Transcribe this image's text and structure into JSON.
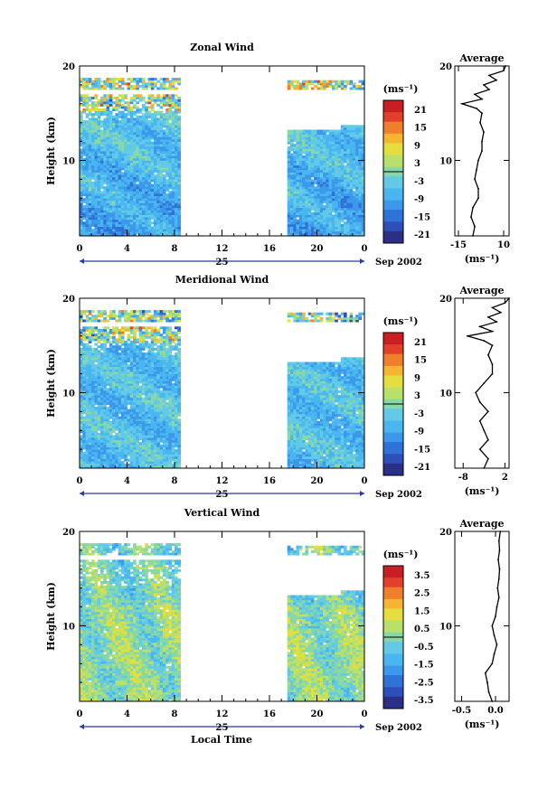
{
  "x_axis_title": "Local Time",
  "colorbar_unit": "(ms⁻¹)",
  "average_title": "Average",
  "average_xlabel": "(ms⁻¹)",
  "height_label": "Height (km)",
  "date_day": "25",
  "date_label": "Sep 2002",
  "colors": {
    "scale": [
      "#2b2f86",
      "#2e4fb8",
      "#2f72d8",
      "#3c98ea",
      "#49b6f0",
      "#62c9e6",
      "#86d8a8",
      "#b9e06a",
      "#e3df3e",
      "#f6b432",
      "#f07f2c",
      "#e2402a",
      "#c81f24"
    ],
    "gap": "#ffffff"
  },
  "chart_data": [
    {
      "type": "heatmap",
      "title": "Zonal Wind",
      "ylabel": "Height (km)",
      "xlabel": "Local Time",
      "x_ticks": [
        "0",
        "4",
        "8",
        "12",
        "16",
        "20",
        "0"
      ],
      "y_ticks": [
        "10",
        "20"
      ],
      "xlim": [
        0,
        24
      ],
      "ylim": [
        2,
        20
      ],
      "data_intervals_hours": [
        [
          0,
          8.5
        ],
        [
          17.5,
          24
        ]
      ],
      "vmin": -24,
      "vmax": 24,
      "colorbar_ticks": [
        "21",
        "15",
        "9",
        "3",
        "-3",
        "-9",
        "-15",
        "-21"
      ],
      "colorbar_values": [
        21,
        15,
        9,
        3,
        -3,
        -9,
        -15,
        -21
      ],
      "average_profile": {
        "title": "Average",
        "xlabel": "(ms⁻¹)",
        "x_ticks": [
          "-15",
          "10"
        ],
        "x_tick_values": [
          -15,
          10
        ],
        "xlim": [
          -17,
          13
        ],
        "y_ticks": [
          "10",
          "20"
        ],
        "height_km": [
          2,
          3,
          4,
          5,
          6,
          7,
          8,
          9,
          10,
          11,
          12,
          13,
          14,
          15,
          15.5,
          16,
          16.5,
          17,
          17.5,
          18,
          18.5,
          19,
          19.5,
          20
        ],
        "wind_ms": [
          -7,
          -6,
          -8,
          -7,
          -4,
          -4,
          -6,
          -5,
          -4,
          -2,
          -2,
          -1,
          -3,
          -2,
          -5,
          -13,
          -2,
          -6,
          2,
          -1,
          6,
          2,
          10,
          11
        ]
      }
    },
    {
      "type": "heatmap",
      "title": "Meridional Wind",
      "ylabel": "Height (km)",
      "xlabel": "Local Time",
      "x_ticks": [
        "0",
        "4",
        "8",
        "12",
        "16",
        "20",
        "0"
      ],
      "y_ticks": [
        "10",
        "20"
      ],
      "xlim": [
        0,
        24
      ],
      "ylim": [
        2,
        20
      ],
      "data_intervals_hours": [
        [
          0,
          8.5
        ],
        [
          17.5,
          24
        ]
      ],
      "vmin": -24,
      "vmax": 24,
      "colorbar_ticks": [
        "21",
        "15",
        "9",
        "3",
        "-3",
        "-9",
        "-15",
        "-21"
      ],
      "colorbar_values": [
        21,
        15,
        9,
        3,
        -3,
        -9,
        -15,
        -21
      ],
      "average_profile": {
        "title": "Average",
        "xlabel": "(ms⁻¹)",
        "x_ticks": [
          "-8",
          "2"
        ],
        "x_tick_values": [
          -8,
          2
        ],
        "xlim": [
          -10,
          3
        ],
        "y_ticks": [
          "10",
          "20"
        ],
        "height_km": [
          2,
          3,
          4,
          5,
          6,
          7,
          8,
          9,
          10,
          11,
          12,
          13,
          14,
          15,
          15.5,
          16,
          16.5,
          17,
          17.5,
          18,
          18.5,
          19,
          19.5,
          20
        ],
        "wind_ms": [
          -3,
          -2,
          -4,
          -2,
          -3,
          -4,
          -2,
          -4,
          -5,
          -3,
          -1,
          -1,
          -2,
          -1,
          -3,
          -7,
          -1,
          -4,
          0,
          -2,
          1,
          -1,
          2,
          3
        ]
      }
    },
    {
      "type": "heatmap",
      "title": "Vertical Wind",
      "ylabel": "Height (km)",
      "xlabel": "Local Time",
      "x_ticks": [
        "0",
        "4",
        "8",
        "12",
        "16",
        "20",
        "0"
      ],
      "y_ticks": [
        "10",
        "20"
      ],
      "xlim": [
        0,
        24
      ],
      "ylim": [
        2,
        20
      ],
      "data_intervals_hours": [
        [
          0,
          8.5
        ],
        [
          17.5,
          24
        ]
      ],
      "vmin": -4,
      "vmax": 4,
      "colorbar_ticks": [
        "3.5",
        "2.5",
        "1.5",
        "0.5",
        "-0.5",
        "-1.5",
        "-2.5",
        "-3.5"
      ],
      "colorbar_values": [
        3.5,
        2.5,
        1.5,
        0.5,
        -0.5,
        -1.5,
        -2.5,
        -3.5
      ],
      "average_profile": {
        "title": "Average",
        "xlabel": "(ms⁻¹)",
        "x_ticks": [
          "-0.5",
          "0.0"
        ],
        "x_tick_values": [
          -0.5,
          0.0
        ],
        "xlim": [
          -0.6,
          0.2
        ],
        "y_ticks": [
          "10",
          "20"
        ],
        "height_km": [
          2,
          3,
          4,
          5,
          6,
          7,
          8,
          9,
          10,
          11,
          12,
          13,
          14,
          15,
          16,
          17,
          18,
          19,
          20
        ],
        "wind_ms": [
          -0.05,
          -0.1,
          -0.12,
          -0.15,
          -0.05,
          -0.02,
          0.02,
          -0.02,
          -0.05,
          0.0,
          0.02,
          0.05,
          0.03,
          0.05,
          0.06,
          0.04,
          0.06,
          0.05,
          0.07
        ]
      }
    }
  ]
}
